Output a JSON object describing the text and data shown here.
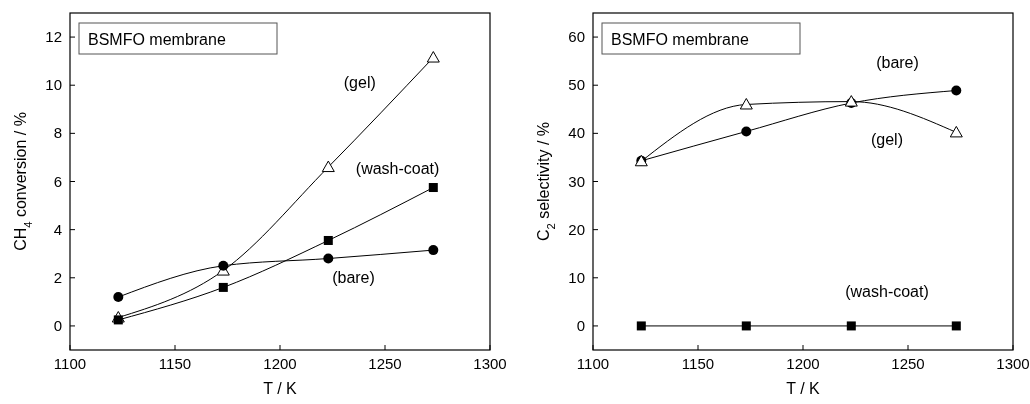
{
  "chart_data": [
    {
      "type": "line",
      "title": "BSMFO membrane",
      "xlabel": "T / K",
      "ylabel": "CH$_{4}$ conversion / %",
      "x": [
        1123,
        1173,
        1223,
        1273
      ],
      "series": [
        {
          "name": "(gel)",
          "color": "#000000",
          "marker": "triangle",
          "values": [
            0.35,
            2.3,
            6.6,
            11.15
          ]
        },
        {
          "name": "(wash-coat)",
          "color": "#000000",
          "marker": "square",
          "values": [
            0.25,
            1.6,
            3.55,
            5.75
          ]
        },
        {
          "name": "(bare)",
          "color": "#000000",
          "marker": "circle",
          "values": [
            1.2,
            2.5,
            2.8,
            3.15
          ]
        }
      ],
      "xlim": [
        1100,
        1300
      ],
      "xticks": [
        1100,
        1150,
        1200,
        1250,
        1300
      ],
      "ylim": [
        -1,
        13
      ],
      "yticks": [
        0,
        2,
        4,
        6,
        8,
        10,
        12
      ],
      "grid": false,
      "legend": false
    },
    {
      "type": "line",
      "title": "BSMFO membrane",
      "xlabel": "T / K",
      "ylabel": "C$_{2}$ selectivity / %",
      "x": [
        1123,
        1173,
        1223,
        1273
      ],
      "series": [
        {
          "name": "(bare)",
          "color": "#000000",
          "marker": "circle",
          "values": [
            34.3,
            40.4,
            46.3,
            48.9
          ]
        },
        {
          "name": "(gel)",
          "color": "#000000",
          "marker": "triangle",
          "values": [
            34.2,
            46,
            46.6,
            40.2
          ]
        },
        {
          "name": "(wash-coat)",
          "color": "#000000",
          "marker": "square",
          "values": [
            0,
            0,
            0,
            0
          ]
        }
      ],
      "xlim": [
        1100,
        1300
      ],
      "xticks": [
        1100,
        1150,
        1200,
        1250,
        1300
      ],
      "ylim": [
        -5,
        65
      ],
      "yticks": [
        0,
        10,
        20,
        30,
        40,
        50,
        60
      ],
      "grid": false,
      "legend": false
    }
  ]
}
